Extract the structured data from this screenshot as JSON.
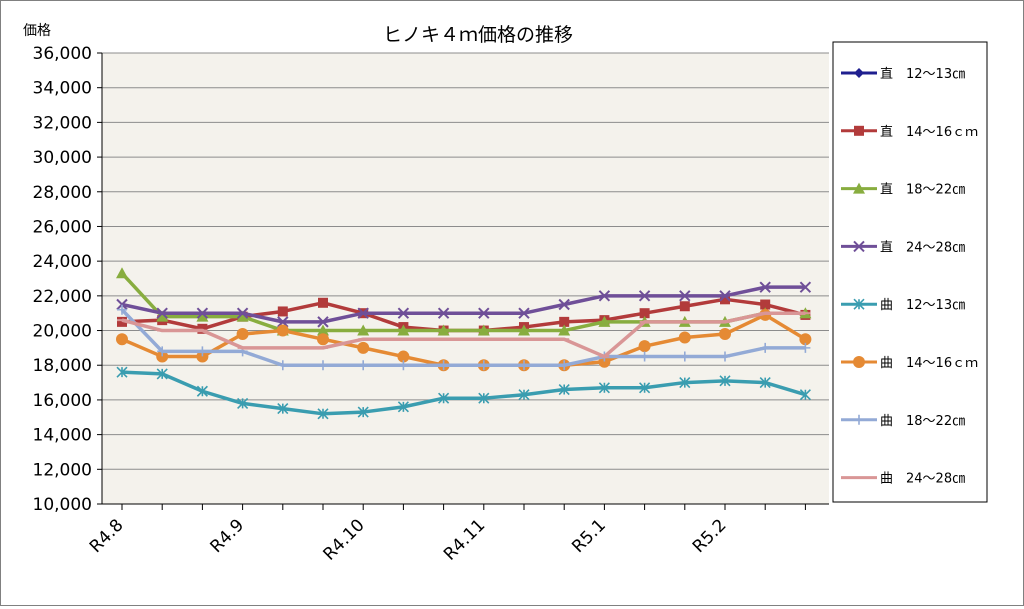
{
  "chart_data": {
    "type": "line",
    "title": "ヒノキ４ｍ価格の推移",
    "ylabel": "価格",
    "xlabel": "",
    "ylim": [
      10000,
      36000
    ],
    "ytick_step": 2000,
    "x": [
      "R4.8",
      "",
      "",
      "R4.9",
      "",
      "",
      "R4.10",
      "",
      "",
      "R4.11",
      "",
      "",
      "R5.1",
      "",
      "",
      "R5.2",
      "",
      ""
    ],
    "x_tick_labels": [
      "R4.8",
      "R4.9",
      "R4.10",
      "R4.11",
      "R5.1",
      "R5.2"
    ],
    "grid": "horizontal",
    "legend": "right",
    "plot_background": "#f4f2ec",
    "series": [
      {
        "name": "直　12～13㎝",
        "color": "#1f1f8f",
        "marker": "diamond",
        "values": [
          null,
          null,
          null,
          null,
          null,
          null,
          null,
          null,
          null,
          null,
          null,
          null,
          null,
          null,
          null,
          null,
          null,
          null
        ]
      },
      {
        "name": "直　14～16ｃｍ",
        "color": "#b23b3b",
        "marker": "square",
        "values": [
          20500,
          20600,
          20100,
          20800,
          21100,
          21600,
          21000,
          20200,
          20000,
          20000,
          20200,
          20500,
          20600,
          21000,
          21400,
          21800,
          21500,
          20900
        ]
      },
      {
        "name": "直　18～22㎝",
        "color": "#88ad3f",
        "marker": "triangle",
        "values": [
          23300,
          20800,
          20800,
          20800,
          20000,
          20000,
          20000,
          20000,
          20000,
          20000,
          20000,
          20000,
          20500,
          20500,
          20500,
          20500,
          21000,
          21000
        ]
      },
      {
        "name": "直　24～28㎝",
        "color": "#6f4f98",
        "marker": "x",
        "values": [
          21500,
          21000,
          21000,
          21000,
          20500,
          20500,
          21000,
          21000,
          21000,
          21000,
          21000,
          21500,
          22000,
          22000,
          22000,
          22000,
          22500,
          22500
        ]
      },
      {
        "name": "曲　12～13㎝",
        "color": "#3a9db0",
        "marker": "star",
        "values": [
          17600,
          17500,
          16500,
          15800,
          15500,
          15200,
          15300,
          15600,
          16100,
          16100,
          16300,
          16600,
          16700,
          16700,
          17000,
          17100,
          17000,
          16300
        ]
      },
      {
        "name": "曲　14～16ｃｍ",
        "color": "#e58a34",
        "marker": "circle",
        "values": [
          19500,
          18500,
          18500,
          19800,
          20000,
          19500,
          19000,
          18500,
          18000,
          18000,
          18000,
          18000,
          18200,
          19100,
          19600,
          19800,
          20900,
          19500
        ]
      },
      {
        "name": "曲　18～22㎝",
        "color": "#93aad6",
        "marker": "plus",
        "values": [
          21200,
          18800,
          18800,
          18800,
          18000,
          18000,
          18000,
          18000,
          18000,
          18000,
          18000,
          18000,
          18500,
          18500,
          18500,
          18500,
          19000,
          19000
        ]
      },
      {
        "name": "曲　24～28㎝",
        "color": "#d99696",
        "marker": "dash",
        "values": [
          20600,
          20000,
          20000,
          19000,
          19000,
          19000,
          19500,
          19500,
          19500,
          19500,
          19500,
          19500,
          18500,
          20500,
          20500,
          20500,
          21000,
          21000
        ]
      }
    ]
  }
}
